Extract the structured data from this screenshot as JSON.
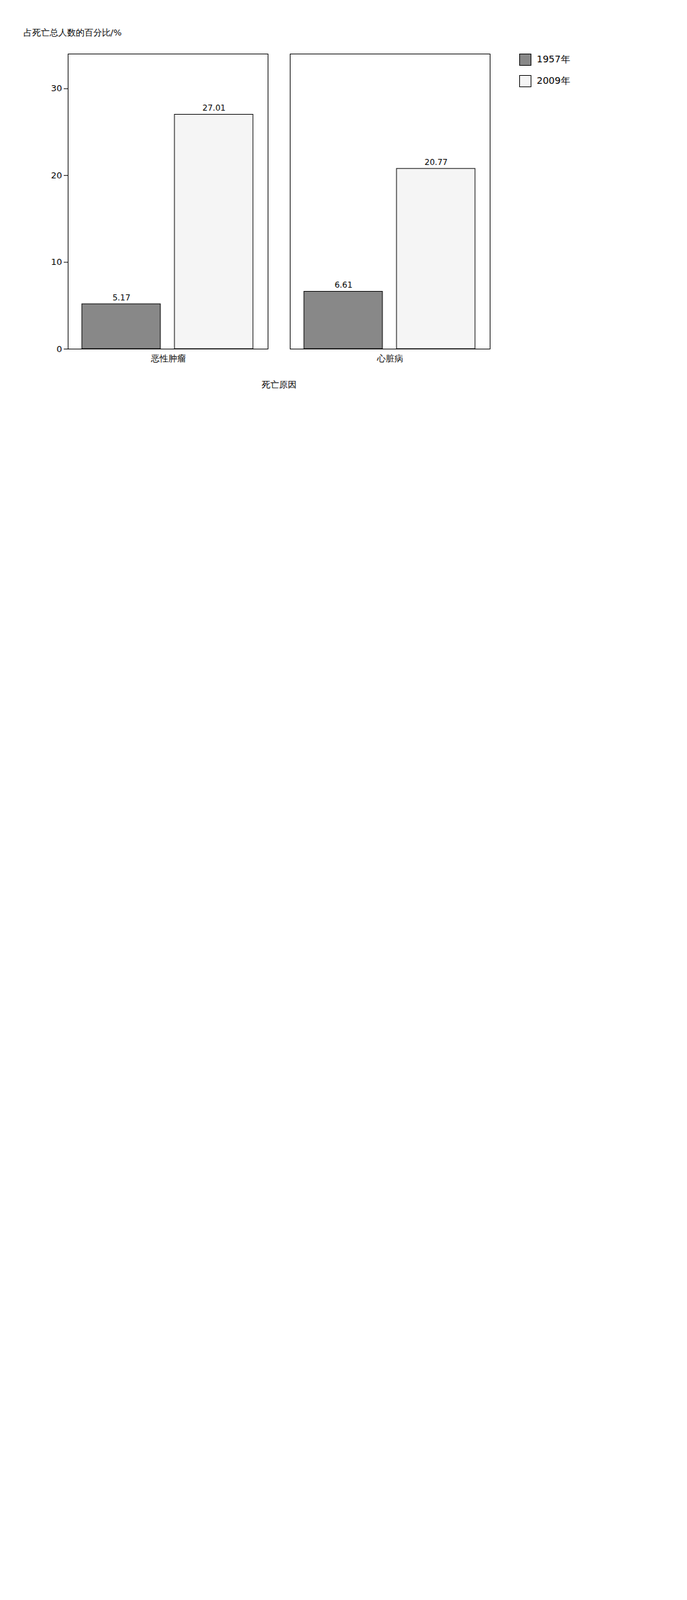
{
  "chart_data": {
    "type": "bar",
    "categories": [
      "恶性肿瘤",
      "心脏病"
    ],
    "series": [
      {
        "name": "1957年",
        "color": "#888888",
        "values": [
          5.17,
          6.61
        ]
      },
      {
        "name": "2009年",
        "color": "#f5f5f5",
        "values": [
          27.01,
          20.77
        ]
      }
    ],
    "xlabel": "死亡原因",
    "ylabel": "占死亡总人数的百分比/%",
    "ylim": [
      0,
      34
    ],
    "yticks": [
      0,
      10,
      20,
      30
    ],
    "data_labels": true,
    "grid": false,
    "legend": "right"
  }
}
